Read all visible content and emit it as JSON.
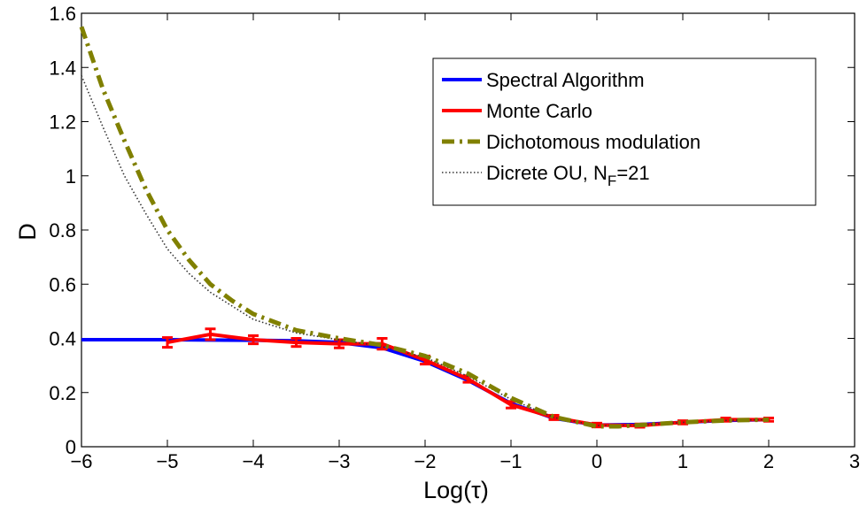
{
  "chart_data": {
    "type": "line",
    "xlabel": "Log(τ)",
    "ylabel": "D",
    "xlim": [
      -6,
      3
    ],
    "ylim": [
      0,
      1.6
    ],
    "x_ticks": [
      "−6",
      "−5",
      "−4",
      "−3",
      "−2",
      "−1",
      "0",
      "1",
      "2",
      "3"
    ],
    "y_ticks": [
      "0",
      "0.2",
      "0.4",
      "0.6",
      "0.8",
      "1",
      "1.2",
      "1.4",
      "1.6"
    ],
    "grid": false,
    "legend_position": "top-right",
    "series": [
      {
        "name": "Spectral Algorithm",
        "color": "#0000ff",
        "style": "solid",
        "x": [
          -6,
          -5,
          -4.5,
          -4,
          -3.5,
          -3,
          -2.5,
          -2,
          -1.5,
          -1,
          -0.5,
          0,
          0.5,
          1,
          1.5,
          2
        ],
        "y": [
          0.395,
          0.395,
          0.394,
          0.393,
          0.391,
          0.385,
          0.365,
          0.315,
          0.245,
          0.16,
          0.105,
          0.08,
          0.082,
          0.09,
          0.097,
          0.1
        ]
      },
      {
        "name": "Monte Carlo",
        "color": "#ff0000",
        "style": "solid-errorbars",
        "x": [
          -5,
          -4.5,
          -4,
          -3.5,
          -3,
          -2.5,
          -2,
          -1.5,
          -1,
          -0.5,
          0,
          0.5,
          1,
          1.5,
          2
        ],
        "y": [
          0.385,
          0.415,
          0.395,
          0.385,
          0.38,
          0.38,
          0.32,
          0.25,
          0.155,
          0.108,
          0.08,
          0.078,
          0.09,
          0.1,
          0.1
        ],
        "err": [
          0.018,
          0.02,
          0.015,
          0.015,
          0.015,
          0.02,
          0.015,
          0.012,
          0.012,
          0.008,
          0.007,
          0.006,
          0.006,
          0.006,
          0.006
        ]
      },
      {
        "name": "Dichotomous modulation",
        "color": "#808000",
        "style": "dash-dot",
        "x": [
          -6,
          -5.75,
          -5.5,
          -5.25,
          -5,
          -4.75,
          -4.5,
          -4.25,
          -4,
          -3.5,
          -3,
          -2.5,
          -2,
          -1.5,
          -1,
          -0.5,
          0,
          0.25,
          0.5,
          1,
          1.5,
          2
        ],
        "y": [
          1.55,
          1.32,
          1.13,
          0.95,
          0.8,
          0.69,
          0.6,
          0.54,
          0.49,
          0.43,
          0.4,
          0.375,
          0.335,
          0.27,
          0.18,
          0.11,
          0.075,
          0.075,
          0.08,
          0.09,
          0.097,
          0.1
        ]
      },
      {
        "name": "Dicrete OU, N",
        "name_subscript": "F",
        "name_suffix": "=21",
        "color": "#333333",
        "style": "dotted",
        "x": [
          -6,
          -5.75,
          -5.5,
          -5.25,
          -5,
          -4.75,
          -4.5,
          -4.25,
          -4,
          -3.5,
          -3,
          -2.5,
          -2,
          -1.5,
          -1,
          -0.5,
          0,
          0.5,
          1,
          1.5,
          2
        ],
        "y": [
          1.37,
          1.18,
          1.0,
          0.86,
          0.73,
          0.64,
          0.57,
          0.52,
          0.47,
          0.42,
          0.395,
          0.37,
          0.33,
          0.26,
          0.175,
          0.108,
          0.078,
          0.08,
          0.09,
          0.097,
          0.1
        ]
      }
    ]
  }
}
